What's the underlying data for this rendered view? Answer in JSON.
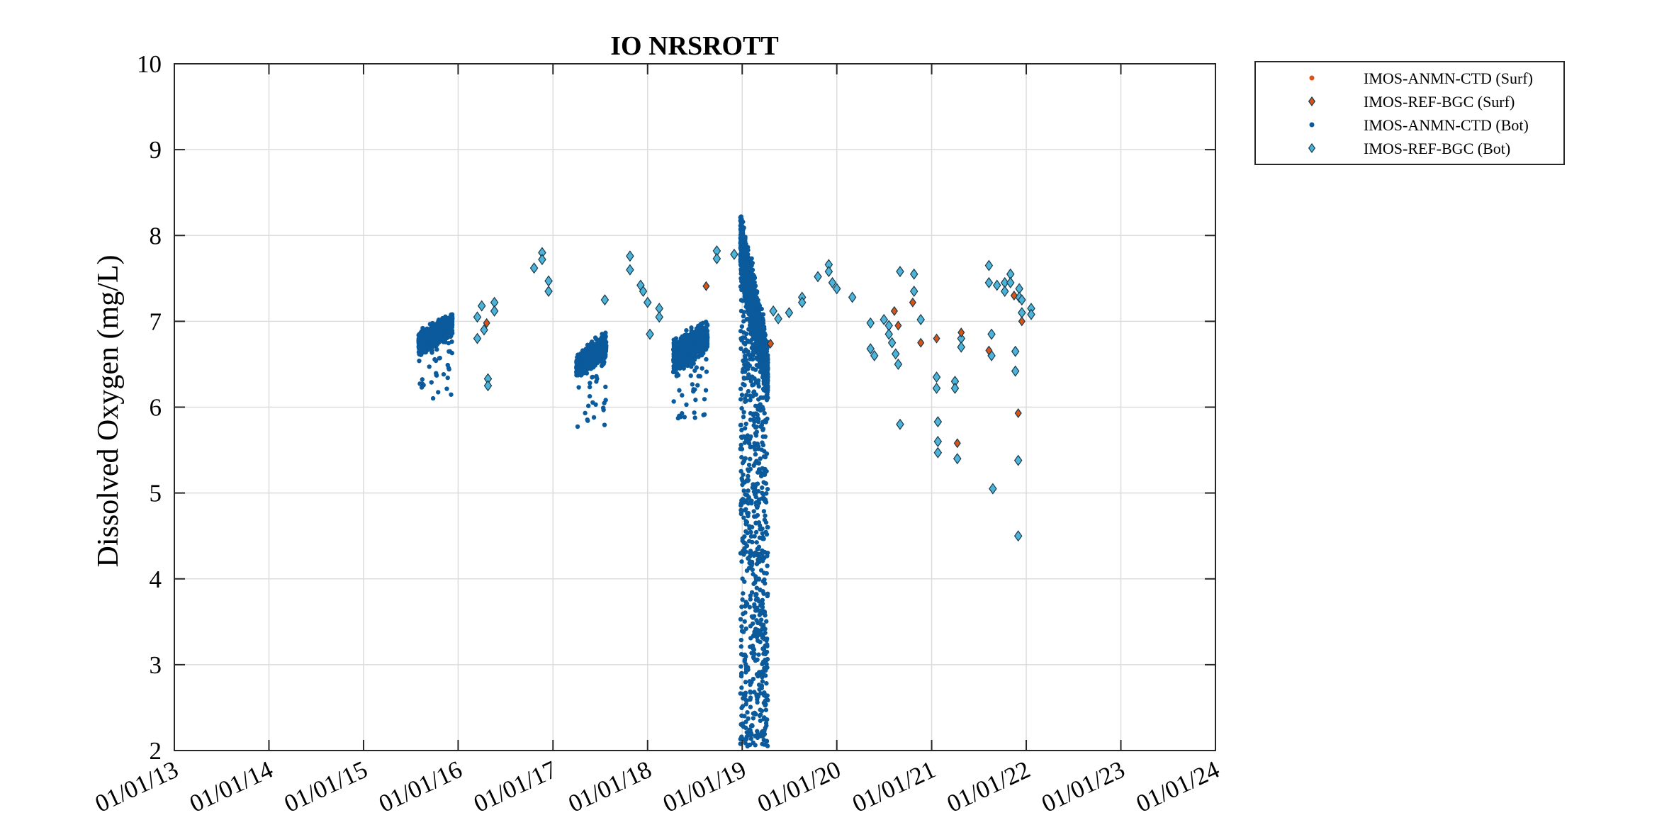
{
  "chart_data": {
    "type": "scatter",
    "title": "IO NRSROTT",
    "xlabel": "",
    "ylabel": "Dissolved Oxygen (mg/L)",
    "ylim": [
      2,
      10
    ],
    "xlim": [
      "2013-01-01",
      "2024-01-01"
    ],
    "x_tick_labels": [
      "01/01/13",
      "01/01/14",
      "01/01/15",
      "01/01/16",
      "01/01/17",
      "01/01/18",
      "01/01/19",
      "01/01/20",
      "01/01/21",
      "01/01/22",
      "01/01/23",
      "01/01/24"
    ],
    "y_tick_labels": [
      "2",
      "3",
      "4",
      "5",
      "6",
      "7",
      "8",
      "9",
      "10"
    ],
    "grid": true,
    "legend_position": "outside-top-right",
    "colors": {
      "surf": "#d95319",
      "bot": "#0a5a9c",
      "bot_diamond_fill": "#4db3d9",
      "diamond_edge": "#1a3a4a"
    },
    "series": [
      {
        "name": "IMOS-ANMN-CTD (Surf)",
        "marker": "dot",
        "color": "#d95319",
        "points": []
      },
      {
        "name": "IMOS-REF-BGC (Surf)",
        "marker": "diamond",
        "color": "#d95319",
        "points": [
          [
            "2016-04-20",
            6.98
          ],
          [
            "2018-08-15",
            7.41
          ],
          [
            "2019-04-20",
            6.74
          ],
          [
            "2020-08-10",
            7.12
          ],
          [
            "2020-08-25",
            6.95
          ],
          [
            "2020-10-20",
            7.22
          ],
          [
            "2020-11-20",
            6.75
          ],
          [
            "2021-01-20",
            6.8
          ],
          [
            "2021-04-10",
            5.58
          ],
          [
            "2021-04-25",
            6.87
          ],
          [
            "2021-08-10",
            6.66
          ],
          [
            "2021-11-15",
            7.3
          ],
          [
            "2021-12-01",
            5.93
          ],
          [
            "2021-12-15",
            7.0
          ]
        ]
      },
      {
        "name": "IMOS-ANMN-CTD (Bot)",
        "marker": "dot",
        "color": "#0a5a9c",
        "clusters": [
          {
            "start": "2015-08-01",
            "end": "2015-12-10",
            "center": 6.85,
            "spread": 0.22,
            "min": 6.1,
            "max": 7.35
          },
          {
            "start": "2017-04-01",
            "end": "2017-07-25",
            "center": 6.6,
            "spread": 0.22,
            "min": 5.75,
            "max": 7.05
          },
          {
            "start": "2018-04-10",
            "end": "2018-08-20",
            "center": 6.7,
            "spread": 0.28,
            "min": 5.85,
            "max": 7.45
          },
          {
            "start": "2018-12-25",
            "end": "2019-04-10",
            "center": 7.1,
            "spread": 0.75,
            "min": 2.05,
            "max": 8.55
          }
        ]
      },
      {
        "name": "IMOS-REF-BGC (Bot)",
        "marker": "diamond",
        "color": "#4db3d9",
        "points": [
          [
            "2016-03-15",
            6.8
          ],
          [
            "2016-03-15",
            7.05
          ],
          [
            "2016-04-01",
            7.18
          ],
          [
            "2016-04-10",
            6.9
          ],
          [
            "2016-04-25",
            6.33
          ],
          [
            "2016-04-25",
            6.25
          ],
          [
            "2016-05-20",
            7.22
          ],
          [
            "2016-05-20",
            7.12
          ],
          [
            "2016-10-20",
            7.62
          ],
          [
            "2016-11-20",
            7.8
          ],
          [
            "2016-11-20",
            7.72
          ],
          [
            "2016-12-15",
            7.47
          ],
          [
            "2016-12-15",
            7.35
          ],
          [
            "2017-07-20",
            7.25
          ],
          [
            "2017-10-25",
            7.76
          ],
          [
            "2017-10-25",
            7.6
          ],
          [
            "2017-12-05",
            7.42
          ],
          [
            "2017-12-15",
            7.35
          ],
          [
            "2018-01-01",
            7.22
          ],
          [
            "2018-01-10",
            6.85
          ],
          [
            "2018-02-15",
            7.15
          ],
          [
            "2018-02-15",
            7.05
          ],
          [
            "2018-09-25",
            7.82
          ],
          [
            "2018-09-25",
            7.73
          ],
          [
            "2018-12-01",
            7.78
          ],
          [
            "2019-05-01",
            7.12
          ],
          [
            "2019-05-20",
            7.03
          ],
          [
            "2019-07-01",
            7.1
          ],
          [
            "2019-08-20",
            7.28
          ],
          [
            "2019-08-20",
            7.22
          ],
          [
            "2019-10-20",
            7.52
          ],
          [
            "2019-12-01",
            7.66
          ],
          [
            "2019-12-01",
            7.58
          ],
          [
            "2019-12-15",
            7.45
          ],
          [
            "2020-01-01",
            7.38
          ],
          [
            "2020-03-01",
            7.28
          ],
          [
            "2020-05-10",
            6.98
          ],
          [
            "2020-05-10",
            6.68
          ],
          [
            "2020-05-25",
            6.6
          ],
          [
            "2020-07-01",
            7.02
          ],
          [
            "2020-07-20",
            6.95
          ],
          [
            "2020-07-20",
            6.85
          ],
          [
            "2020-08-01",
            6.75
          ],
          [
            "2020-08-15",
            6.62
          ],
          [
            "2020-08-25",
            6.5
          ],
          [
            "2020-09-01",
            7.58
          ],
          [
            "2020-09-01",
            5.8
          ],
          [
            "2020-10-25",
            7.55
          ],
          [
            "2020-10-25",
            7.35
          ],
          [
            "2020-11-20",
            7.02
          ],
          [
            "2021-01-20",
            6.35
          ],
          [
            "2021-01-20",
            6.22
          ],
          [
            "2021-01-25",
            5.83
          ],
          [
            "2021-01-25",
            5.6
          ],
          [
            "2021-01-25",
            5.47
          ],
          [
            "2021-04-01",
            6.3
          ],
          [
            "2021-04-01",
            6.22
          ],
          [
            "2021-04-10",
            5.4
          ],
          [
            "2021-04-25",
            6.8
          ],
          [
            "2021-04-25",
            6.7
          ],
          [
            "2021-08-10",
            7.65
          ],
          [
            "2021-08-10",
            7.45
          ],
          [
            "2021-08-20",
            6.85
          ],
          [
            "2021-08-20",
            6.6
          ],
          [
            "2021-08-25",
            5.05
          ],
          [
            "2021-09-10",
            7.42
          ],
          [
            "2021-10-10",
            7.45
          ],
          [
            "2021-10-10",
            7.35
          ],
          [
            "2021-11-01",
            7.55
          ],
          [
            "2021-11-01",
            7.45
          ],
          [
            "2021-11-20",
            6.65
          ],
          [
            "2021-11-20",
            6.42
          ],
          [
            "2021-12-01",
            5.38
          ],
          [
            "2021-12-01",
            4.5
          ],
          [
            "2021-12-05",
            7.38
          ],
          [
            "2021-12-05",
            7.28
          ],
          [
            "2021-12-15",
            7.25
          ],
          [
            "2021-12-15",
            7.1
          ],
          [
            "2022-01-20",
            7.15
          ],
          [
            "2022-01-20",
            7.08
          ]
        ]
      }
    ]
  }
}
